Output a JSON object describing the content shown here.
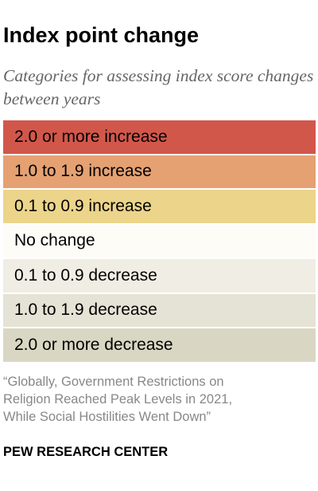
{
  "title": "Index point change",
  "subtitle": "Categories for assessing index score changes between years",
  "legend": {
    "items": [
      {
        "label": "2.0 or more increase",
        "color": "#d2574b"
      },
      {
        "label": "1.0 to 1.9 increase",
        "color": "#e5a172"
      },
      {
        "label": "0.1 to 0.9 increase",
        "color": "#ecd48a"
      },
      {
        "label": "No change",
        "color": "#fdfcf7"
      },
      {
        "label": "0.1 to 0.9 decrease",
        "color": "#f0ede4"
      },
      {
        "label": "1.0 to 1.9 decrease",
        "color": "#e5e2d6"
      },
      {
        "label": "2.0 or more decrease",
        "color": "#d9d7c3"
      }
    ]
  },
  "source": {
    "lines": [
      "“Globally, Government Restrictions on",
      "Religion Reached Peak Levels in 2021,",
      "While Social Hostilities Went Down”"
    ]
  },
  "organization": "PEW RESEARCH CENTER"
}
